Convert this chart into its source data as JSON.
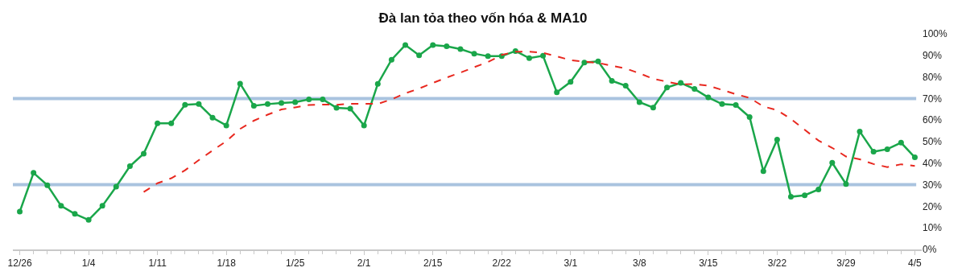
{
  "chart_data": {
    "type": "line",
    "title": "Đà lan tỏa theo vốn hóa & MA10",
    "categories": [
      "12/26",
      null,
      null,
      null,
      null,
      "1/4",
      null,
      null,
      null,
      null,
      "1/11",
      null,
      null,
      null,
      null,
      "1/18",
      null,
      null,
      null,
      null,
      "1/25",
      null,
      null,
      null,
      null,
      "2/1",
      null,
      null,
      null,
      null,
      "2/15",
      null,
      null,
      null,
      null,
      "2/22",
      null,
      null,
      null,
      null,
      "3/1",
      null,
      null,
      null,
      null,
      "3/8",
      null,
      null,
      null,
      null,
      "3/15",
      null,
      null,
      null,
      null,
      "3/22",
      null,
      null,
      null,
      null,
      "3/29",
      null,
      null,
      null,
      null,
      "4/5"
    ],
    "series": [
      {
        "color": "#1aa64a",
        "marker": "circle",
        "line_style": "solid",
        "values": [
          17.5,
          35.5,
          29.8,
          20.2,
          16.5,
          13.7,
          20.2,
          29.1,
          38.6,
          44.4,
          58.5,
          58.5,
          67.1,
          67.4,
          61.1,
          57.5,
          76.9,
          66.6,
          67.4,
          67.9,
          68.3,
          69.6,
          69.6,
          65.7,
          65.3,
          57.5,
          76.8,
          88.0,
          94.8,
          90.0,
          94.8,
          94.2,
          92.9,
          90.8,
          89.6,
          89.6,
          92.0,
          88.7,
          89.8,
          72.9,
          77.7,
          86.7,
          87.2,
          78.2,
          75.9,
          68.3,
          65.8,
          75.1,
          77.2,
          74.4,
          70.5,
          67.4,
          67.0,
          61.4,
          36.3,
          50.9,
          24.4,
          25.1,
          27.8,
          40.2,
          30.3,
          54.7,
          45.3,
          46.5,
          49.5,
          42.7
        ]
      },
      {
        "color": "#e8281f",
        "marker": "none",
        "line_style": "dashed",
        "values": [
          null,
          null,
          null,
          null,
          null,
          null,
          null,
          null,
          null,
          26.6,
          30.7,
          33.0,
          36.7,
          41.4,
          45.9,
          50.2,
          55.9,
          59.7,
          62.5,
          64.9,
          65.9,
          67.0,
          67.2,
          67.1,
          67.5,
          67.5,
          67.5,
          69.6,
          72.4,
          74.6,
          77.2,
          79.7,
          82.0,
          84.5,
          86.9,
          90.2,
          91.7,
          91.7,
          91.2,
          89.5,
          87.8,
          87.1,
          86.5,
          85.2,
          83.9,
          81.7,
          79.1,
          77.8,
          76.5,
          76.7,
          75.9,
          74.0,
          72.0,
          70.3,
          66.3,
          64.6,
          60.5,
          55.5,
          50.5,
          47.1,
          43.1,
          41.8,
          39.6,
          38.2,
          39.5,
          38.7
        ]
      }
    ],
    "ylim": [
      0,
      100
    ],
    "yticks": [
      {
        "value": 0,
        "label": "0%"
      },
      {
        "value": 10,
        "label": "10%"
      },
      {
        "value": 20,
        "label": "20%"
      },
      {
        "value": 30,
        "label": "30%"
      },
      {
        "value": 40,
        "label": "40%"
      },
      {
        "value": 50,
        "label": "50%"
      },
      {
        "value": 60,
        "label": "60%"
      },
      {
        "value": 70,
        "label": "70%"
      },
      {
        "value": 80,
        "label": "80%"
      },
      {
        "value": 90,
        "label": "90%"
      },
      {
        "value": 100,
        "label": "100%"
      }
    ],
    "ref_lines": [
      {
        "axis": "y",
        "value": 70,
        "color": "#a9c3df"
      },
      {
        "axis": "y",
        "value": 30,
        "color": "#a9c3df"
      }
    ],
    "grid": false
  }
}
